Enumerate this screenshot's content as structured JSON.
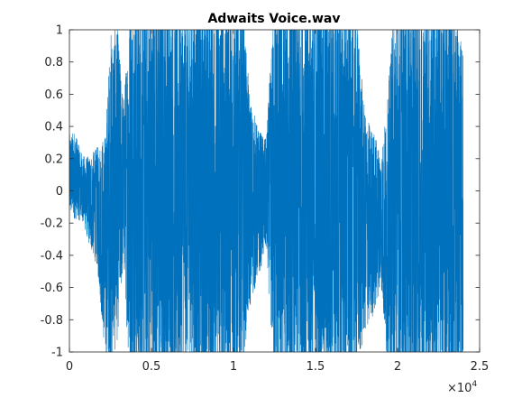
{
  "chart_data": {
    "type": "line",
    "title": "Adwaits Voice.wav",
    "xlabel": "",
    "ylabel": "",
    "xlim": [
      0,
      25000
    ],
    "ylim": [
      -1,
      1
    ],
    "x_ticks": [
      0,
      5000,
      10000,
      15000,
      20000,
      25000
    ],
    "x_tick_labels": [
      "0",
      "0.5",
      "1",
      "1.5",
      "2",
      "2.5"
    ],
    "x_exponent_label": "×10",
    "x_exponent_power": "4",
    "y_ticks": [
      -1,
      -0.8,
      -0.6,
      -0.4,
      -0.2,
      0,
      0.2,
      0.4,
      0.6,
      0.8,
      1
    ],
    "y_tick_labels": [
      "-1",
      "-0.8",
      "-0.6",
      "-0.4",
      "-0.2",
      "0",
      "0.2",
      "0.4",
      "0.6",
      "0.8",
      "1"
    ],
    "grid": false,
    "series_color": "#0072BD",
    "x_end": 24000,
    "envelope": [
      {
        "x": 0,
        "lo": -0.1,
        "hi": 0.3
      },
      {
        "x": 300,
        "lo": -0.12,
        "hi": 0.32
      },
      {
        "x": 800,
        "lo": -0.15,
        "hi": 0.18
      },
      {
        "x": 1200,
        "lo": -0.28,
        "hi": 0.16
      },
      {
        "x": 1700,
        "lo": -0.4,
        "hi": 0.2
      },
      {
        "x": 2200,
        "lo": -0.93,
        "hi": 0.22
      },
      {
        "x": 2500,
        "lo": -0.92,
        "hi": 0.78
      },
      {
        "x": 2900,
        "lo": -0.75,
        "hi": 0.86
      },
      {
        "x": 3300,
        "lo": -0.35,
        "hi": 0.45
      },
      {
        "x": 3700,
        "lo": -1.0,
        "hi": 0.95
      },
      {
        "x": 4200,
        "lo": -1.0,
        "hi": 1.0
      },
      {
        "x": 5000,
        "lo": -1.0,
        "hi": 1.0
      },
      {
        "x": 5800,
        "lo": -1.0,
        "hi": 1.0
      },
      {
        "x": 6500,
        "lo": -1.0,
        "hi": 1.0
      },
      {
        "x": 7000,
        "lo": -0.8,
        "hi": 0.95
      },
      {
        "x": 7600,
        "lo": -1.0,
        "hi": 1.0
      },
      {
        "x": 8500,
        "lo": -1.0,
        "hi": 1.0
      },
      {
        "x": 9500,
        "lo": -1.0,
        "hi": 1.0
      },
      {
        "x": 10500,
        "lo": -0.9,
        "hi": 1.0
      },
      {
        "x": 11000,
        "lo": -0.6,
        "hi": 0.45
      },
      {
        "x": 11500,
        "lo": -0.45,
        "hi": 0.3
      },
      {
        "x": 12000,
        "lo": -0.3,
        "hi": 0.25
      },
      {
        "x": 12500,
        "lo": -1.0,
        "hi": 1.0
      },
      {
        "x": 13500,
        "lo": -1.0,
        "hi": 1.0
      },
      {
        "x": 14500,
        "lo": -1.0,
        "hi": 1.0
      },
      {
        "x": 15500,
        "lo": -1.0,
        "hi": 1.0
      },
      {
        "x": 16500,
        "lo": -1.0,
        "hi": 1.0
      },
      {
        "x": 17500,
        "lo": -0.95,
        "hi": 0.9
      },
      {
        "x": 18000,
        "lo": -0.75,
        "hi": 0.35
      },
      {
        "x": 18600,
        "lo": -0.65,
        "hi": 0.25
      },
      {
        "x": 19000,
        "lo": -0.5,
        "hi": 0.15
      },
      {
        "x": 19400,
        "lo": -1.0,
        "hi": 0.4
      },
      {
        "x": 19800,
        "lo": -1.0,
        "hi": 1.0
      },
      {
        "x": 20500,
        "lo": -1.0,
        "hi": 1.0
      },
      {
        "x": 21500,
        "lo": -1.0,
        "hi": 1.0
      },
      {
        "x": 22500,
        "lo": -1.0,
        "hi": 1.0
      },
      {
        "x": 23300,
        "lo": -1.0,
        "hi": 1.0
      },
      {
        "x": 24000,
        "lo": -0.95,
        "hi": 0.66
      }
    ]
  }
}
